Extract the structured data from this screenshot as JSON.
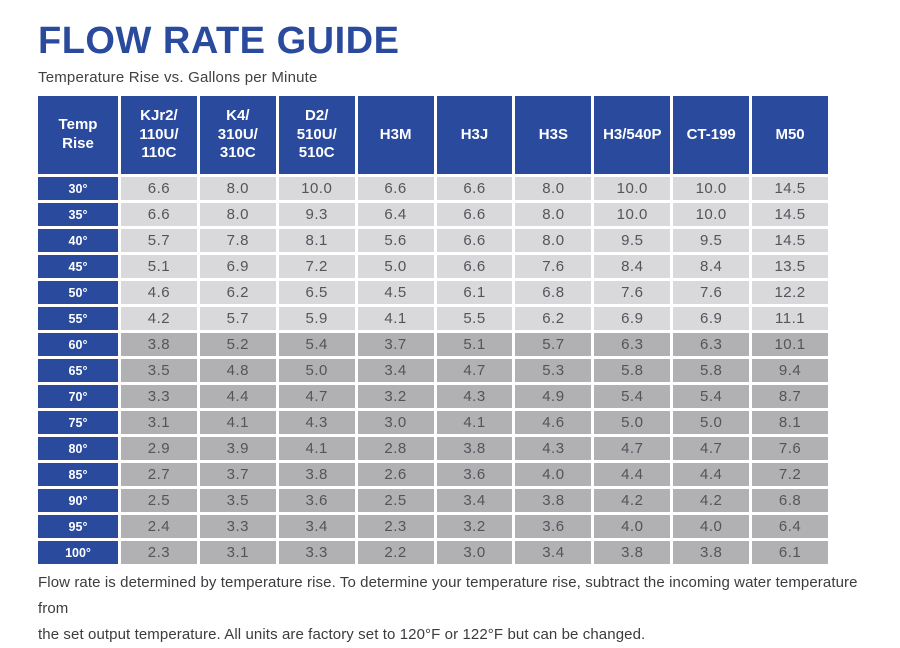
{
  "colors": {
    "brand_blue": "#2a4a9e",
    "row_light": "#d9d9db",
    "row_dark": "#b1b1b3"
  },
  "header": {
    "title": "FLOW RATE GUIDE",
    "subtitle": "Temperature Rise vs. Gallons per Minute"
  },
  "footer": {
    "lines": [
      "Flow rate is determined by temperature rise. To determine your temperature rise, subtract the incoming water temperature from",
      "the set output temperature. All units are factory set to 120°F or 122°F but can be changed."
    ]
  },
  "chart_data": {
    "type": "table",
    "title": "Flow Rate Guide — Temperature Rise vs. Gallons per Minute",
    "columns": [
      "Temp\nRise",
      "KJr2/\n110U/\n110C",
      "K4/\n310U/\n310C",
      "D2/\n510U/\n510C",
      "H3M",
      "H3J",
      "H3S",
      "H3/540P",
      "CT-199",
      "M50"
    ],
    "rows": [
      {
        "temp": "30°",
        "shade": "light",
        "values": [
          "6.6",
          "8.0",
          "10.0",
          "6.6",
          "6.6",
          "8.0",
          "10.0",
          "10.0",
          "14.5"
        ]
      },
      {
        "temp": "35°",
        "shade": "light",
        "values": [
          "6.6",
          "8.0",
          "9.3",
          "6.4",
          "6.6",
          "8.0",
          "10.0",
          "10.0",
          "14.5"
        ]
      },
      {
        "temp": "40°",
        "shade": "light",
        "values": [
          "5.7",
          "7.8",
          "8.1",
          "5.6",
          "6.6",
          "8.0",
          "9.5",
          "9.5",
          "14.5"
        ]
      },
      {
        "temp": "45°",
        "shade": "light",
        "values": [
          "5.1",
          "6.9",
          "7.2",
          "5.0",
          "6.6",
          "7.6",
          "8.4",
          "8.4",
          "13.5"
        ]
      },
      {
        "temp": "50°",
        "shade": "light",
        "values": [
          "4.6",
          "6.2",
          "6.5",
          "4.5",
          "6.1",
          "6.8",
          "7.6",
          "7.6",
          "12.2"
        ]
      },
      {
        "temp": "55°",
        "shade": "light",
        "values": [
          "4.2",
          "5.7",
          "5.9",
          "4.1",
          "5.5",
          "6.2",
          "6.9",
          "6.9",
          "11.1"
        ]
      },
      {
        "temp": "60°",
        "shade": "dark",
        "values": [
          "3.8",
          "5.2",
          "5.4",
          "3.7",
          "5.1",
          "5.7",
          "6.3",
          "6.3",
          "10.1"
        ]
      },
      {
        "temp": "65°",
        "shade": "dark",
        "values": [
          "3.5",
          "4.8",
          "5.0",
          "3.4",
          "4.7",
          "5.3",
          "5.8",
          "5.8",
          "9.4"
        ]
      },
      {
        "temp": "70°",
        "shade": "dark",
        "values": [
          "3.3",
          "4.4",
          "4.7",
          "3.2",
          "4.3",
          "4.9",
          "5.4",
          "5.4",
          "8.7"
        ]
      },
      {
        "temp": "75°",
        "shade": "dark",
        "values": [
          "3.1",
          "4.1",
          "4.3",
          "3.0",
          "4.1",
          "4.6",
          "5.0",
          "5.0",
          "8.1"
        ]
      },
      {
        "temp": "80°",
        "shade": "dark",
        "values": [
          "2.9",
          "3.9",
          "4.1",
          "2.8",
          "3.8",
          "4.3",
          "4.7",
          "4.7",
          "7.6"
        ]
      },
      {
        "temp": "85°",
        "shade": "dark",
        "values": [
          "2.7",
          "3.7",
          "3.8",
          "2.6",
          "3.6",
          "4.0",
          "4.4",
          "4.4",
          "7.2"
        ]
      },
      {
        "temp": "90°",
        "shade": "dark",
        "values": [
          "2.5",
          "3.5",
          "3.6",
          "2.5",
          "3.4",
          "3.8",
          "4.2",
          "4.2",
          "6.8"
        ]
      },
      {
        "temp": "95°",
        "shade": "dark",
        "values": [
          "2.4",
          "3.3",
          "3.4",
          "2.3",
          "3.2",
          "3.6",
          "4.0",
          "4.0",
          "6.4"
        ]
      },
      {
        "temp": "100°",
        "shade": "dark",
        "values": [
          "2.3",
          "3.1",
          "3.3",
          "2.2",
          "3.0",
          "3.4",
          "3.8",
          "3.8",
          "6.1"
        ]
      }
    ]
  }
}
